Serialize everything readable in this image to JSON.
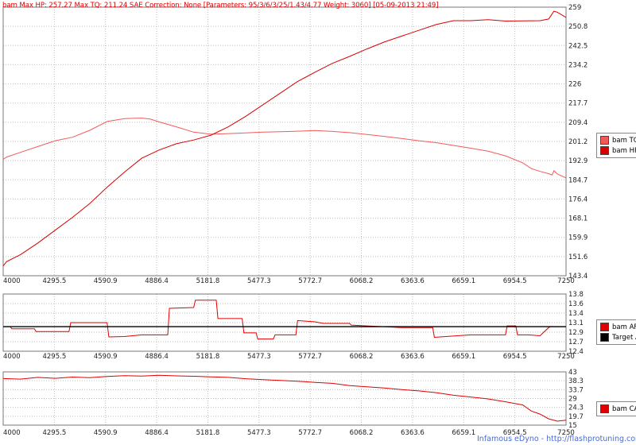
{
  "title": "bam Max HP: 257.27 Max TQ: 211.24 SAE Correction: None [Parameters: 95/3/6/3/25/1.43/4.77 Weight: 3060] [05-09-2013 21:49]",
  "credit": "Infamous eDyno - http://flashprotuning.com",
  "colors": {
    "tq": "#f25a5a",
    "hp": "#d90000",
    "af": "#e00000",
    "target": "#000000",
    "cam": "#e00000",
    "grid": "#bfbfbf"
  },
  "chart_data": [
    {
      "type": "line",
      "panel": "power",
      "x_ticks": [
        "4000",
        "4295.5",
        "4590.9",
        "4886.4",
        "5181.8",
        "5477.3",
        "5772.7",
        "6068.2",
        "6363.6",
        "6659.1",
        "6954.5",
        "7250"
      ],
      "y_ticks": [
        "143.4",
        "151.6",
        "159.9",
        "168.1",
        "176.4",
        "184.7",
        "192.9",
        "201.2",
        "209.4",
        "217.7",
        "226",
        "234.2",
        "242.5",
        "250.8",
        "259"
      ],
      "xlim": [
        4000,
        7250
      ],
      "ylim": [
        143.4,
        259
      ],
      "grid": true,
      "legend_position": "right",
      "series": [
        {
          "name": "bam TQ",
          "x": [
            4000,
            4020,
            4100,
            4200,
            4300,
            4400,
            4500,
            4600,
            4700,
            4800,
            4850,
            4900,
            5000,
            5100,
            5200,
            5300,
            5400,
            5500,
            5600,
            5700,
            5800,
            5900,
            6000,
            6100,
            6200,
            6300,
            6400,
            6500,
            6600,
            6700,
            6800,
            6900,
            7000,
            7050,
            7100,
            7150,
            7170,
            7180,
            7200,
            7250
          ],
          "values": [
            193.5,
            194.5,
            196.5,
            199,
            201.5,
            203,
            206,
            209.8,
            211,
            211.24,
            210.8,
            209.6,
            207.5,
            205.2,
            204.3,
            204.6,
            204.9,
            205.2,
            205.4,
            205.6,
            205.9,
            205.5,
            205,
            204.2,
            203.4,
            202.5,
            201.5,
            200.7,
            199.5,
            198.3,
            197,
            195,
            192,
            189.5,
            188.3,
            187.3,
            186.8,
            188.6,
            187.2,
            185.5
          ]
        },
        {
          "name": "bam HP",
          "x": [
            4000,
            4020,
            4100,
            4200,
            4300,
            4400,
            4500,
            4600,
            4700,
            4800,
            4900,
            5000,
            5100,
            5200,
            5300,
            5400,
            5500,
            5600,
            5700,
            5800,
            5900,
            6000,
            6100,
            6200,
            6300,
            6400,
            6500,
            6600,
            6700,
            6800,
            6900,
            7000,
            7100,
            7150,
            7180,
            7200,
            7250
          ],
          "values": [
            147.6,
            149.5,
            152.5,
            157.5,
            163,
            168.5,
            174.5,
            181.5,
            188,
            194,
            197.5,
            200.2,
            201.8,
            203.9,
            207.5,
            212,
            217,
            222,
            227,
            231,
            234.8,
            237.8,
            241,
            244,
            246.5,
            249,
            251.5,
            253.2,
            253.2,
            253.6,
            253,
            253.1,
            253.2,
            253.9,
            257.27,
            256.8,
            254.6
          ]
        }
      ]
    },
    {
      "type": "line",
      "panel": "air-fuel",
      "x_ticks": [
        "4000",
        "4295.5",
        "4590.9",
        "4886.4",
        "5181.8",
        "5477.3",
        "5772.7",
        "6068.2",
        "6363.6",
        "6659.1",
        "6954.5",
        "7250"
      ],
      "y_ticks": [
        "12.4",
        "12.7",
        "12.9",
        "13.1",
        "13.4",
        "13.6",
        "13.8"
      ],
      "xlim": [
        4000,
        7250
      ],
      "ylim": [
        12.4,
        13.8
      ],
      "grid": true,
      "legend_position": "right",
      "series": [
        {
          "name": "bam AF",
          "x": [
            4000,
            4040,
            4050,
            4100,
            4180,
            4190,
            4300,
            4380,
            4390,
            4600,
            4610,
            4700,
            4800,
            4900,
            4950,
            4960,
            5100,
            5110,
            5230,
            5240,
            5300,
            5380,
            5390,
            5460,
            5470,
            5560,
            5570,
            5690,
            5700,
            5800,
            5850,
            6000,
            6010,
            6100,
            6200,
            6300,
            6350,
            6480,
            6490,
            6700,
            6800,
            6900,
            6910,
            6960,
            6970,
            7020,
            7030,
            7100,
            7150,
            7160,
            7250
          ],
          "values": [
            13.0,
            13.0,
            12.95,
            12.95,
            12.95,
            12.88,
            12.88,
            12.88,
            13.1,
            13.1,
            12.75,
            12.76,
            12.8,
            12.8,
            12.8,
            13.45,
            13.47,
            13.65,
            13.65,
            13.2,
            13.2,
            13.2,
            12.85,
            12.85,
            12.7,
            12.7,
            12.8,
            12.8,
            13.15,
            13.12,
            13.08,
            13.08,
            13.04,
            13.02,
            13.0,
            12.98,
            12.98,
            12.98,
            12.74,
            12.8,
            12.8,
            12.8,
            13.02,
            13.02,
            12.8,
            12.8,
            12.8,
            12.78,
            12.98,
            13.0,
            13.0
          ]
        },
        {
          "name": "Target A/F",
          "x": [
            4000,
            7250
          ],
          "values": [
            13.0,
            13.0
          ]
        }
      ]
    },
    {
      "type": "line",
      "panel": "cam",
      "x_ticks": [
        "4000",
        "4295.5",
        "4590.9",
        "4886.4",
        "5181.8",
        "5477.3",
        "5772.7",
        "6068.2",
        "6363.6",
        "6659.1",
        "6954.5",
        "7250"
      ],
      "y_ticks": [
        "15",
        "19.7",
        "24.3",
        "29",
        "33.7",
        "38.3",
        "43"
      ],
      "xlim": [
        4000,
        7250
      ],
      "ylim": [
        15,
        43
      ],
      "grid": true,
      "legend_position": "right",
      "series": [
        {
          "name": "bam CAM",
          "x": [
            4000,
            4100,
            4200,
            4300,
            4400,
            4500,
            4600,
            4700,
            4800,
            4900,
            5000,
            5100,
            5200,
            5300,
            5400,
            5500,
            5600,
            5700,
            5800,
            5900,
            6000,
            6100,
            6200,
            6300,
            6400,
            6500,
            6600,
            6700,
            6800,
            6900,
            7000,
            7050,
            7100,
            7150,
            7200,
            7250
          ],
          "values": [
            39.5,
            39.2,
            40.1,
            39.6,
            40.3,
            40.0,
            40.6,
            41.0,
            40.8,
            41.2,
            40.9,
            40.7,
            40.4,
            40.1,
            39.4,
            38.9,
            38.5,
            38.1,
            37.5,
            37.0,
            35.8,
            35.2,
            34.5,
            33.7,
            33.0,
            32.1,
            30.7,
            29.8,
            28.8,
            27.3,
            25.6,
            22.4,
            20.8,
            18.3,
            17.1,
            17.6
          ]
        }
      ]
    }
  ]
}
